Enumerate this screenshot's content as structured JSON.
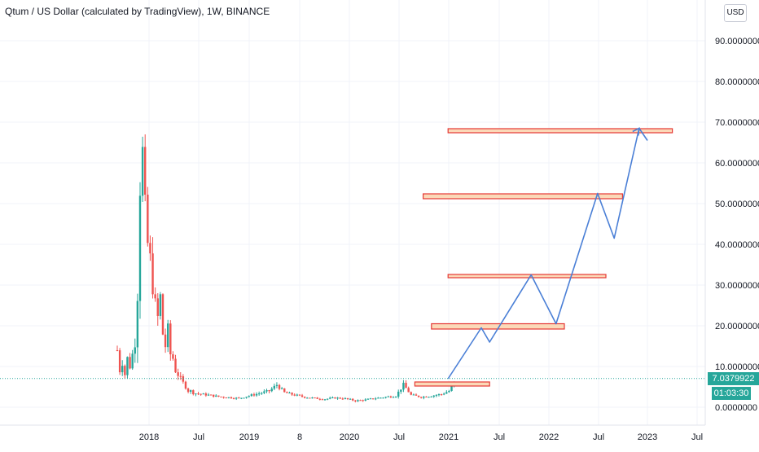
{
  "title": "Qtum / US Dollar (calculated by TradingView), 1W, BINANCE",
  "currency_button": "USD",
  "current_price": "7.0379922",
  "countdown": "01:03:30",
  "chart_data": {
    "type": "candlestick",
    "symbol": "QTUM/USD",
    "interval": "1W",
    "y_ticks": [
      "90.0000000",
      "80.0000000",
      "70.0000000",
      "60.0000000",
      "50.0000000",
      "40.0000000",
      "30.0000000",
      "20.0000000",
      "10.0000000",
      "0.0000000"
    ],
    "y_values": [
      90,
      80,
      70,
      60,
      50,
      40,
      30,
      20,
      10,
      0
    ],
    "x_ticks": [
      "2018",
      "Jul",
      "2019",
      "8",
      "2020",
      "Jul",
      "2021",
      "Jul",
      "2022",
      "Jul",
      "2023",
      "Jul"
    ],
    "ylim": [
      -3,
      93
    ],
    "price_path": [
      [
        0,
        14
      ],
      [
        1,
        9
      ],
      [
        2,
        11
      ],
      [
        3,
        8
      ],
      [
        4,
        12
      ],
      [
        5,
        10
      ],
      [
        6,
        13
      ],
      [
        7,
        16
      ],
      [
        8,
        28
      ],
      [
        9,
        55
      ],
      [
        10,
        62
      ],
      [
        11,
        48
      ],
      [
        12,
        40
      ],
      [
        13,
        36
      ],
      [
        14,
        30
      ],
      [
        15,
        25
      ],
      [
        16,
        22
      ],
      [
        17,
        27
      ],
      [
        18,
        18
      ],
      [
        19,
        15
      ],
      [
        20,
        19
      ],
      [
        21,
        13
      ],
      [
        22,
        12
      ],
      [
        23,
        9
      ],
      [
        24,
        8
      ],
      [
        25,
        7
      ],
      [
        26,
        6
      ],
      [
        27,
        5
      ],
      [
        28,
        4
      ],
      [
        29,
        4
      ],
      [
        30,
        3.5
      ],
      [
        33,
        3.2
      ],
      [
        36,
        3
      ],
      [
        40,
        2.6
      ],
      [
        44,
        2.4
      ],
      [
        48,
        2.2
      ],
      [
        52,
        2.8
      ],
      [
        56,
        3.4
      ],
      [
        60,
        4
      ],
      [
        63,
        5.5
      ],
      [
        66,
        3.6
      ],
      [
        70,
        3
      ],
      [
        74,
        2.5
      ],
      [
        78,
        2.2
      ],
      [
        82,
        2
      ],
      [
        86,
        2.3
      ],
      [
        90,
        2.1
      ],
      [
        94,
        1.6
      ],
      [
        98,
        1.8
      ],
      [
        102,
        2.2
      ],
      [
        106,
        2.5
      ],
      [
        110,
        2.8
      ],
      [
        113,
        5.5
      ],
      [
        116,
        3
      ],
      [
        120,
        2.5
      ],
      [
        124,
        2.8
      ],
      [
        128,
        3.2
      ],
      [
        131,
        4
      ],
      [
        134,
        7.0
      ]
    ],
    "projection": [
      {
        "date": "2021-01",
        "value": 7.0
      },
      {
        "date": "2021-05",
        "value": 19.5
      },
      {
        "date": "2021-06",
        "value": 16
      },
      {
        "date": "2021-11",
        "value": 32.5
      },
      {
        "date": "2022-02",
        "value": 20.5
      },
      {
        "date": "2022-07",
        "value": 52.5
      },
      {
        "date": "2022-09",
        "value": 41.5
      },
      {
        "date": "2022-12",
        "value": 68.5
      },
      {
        "date": "2023-01",
        "value": 65.5
      }
    ],
    "zones": [
      {
        "from": "2020-09",
        "to": "2021-06",
        "low": 5.2,
        "high": 6.2
      },
      {
        "from": "2020-11",
        "to": "2022-03",
        "low": 19.2,
        "high": 20.5
      },
      {
        "from": "2021-01",
        "to": "2022-08",
        "low": 31.8,
        "high": 32.6
      },
      {
        "from": "2020-10",
        "to": "2022-10",
        "low": 51.2,
        "high": 52.4
      },
      {
        "from": "2021-01",
        "to": "2023-04",
        "low": 67.4,
        "high": 68.4
      }
    ],
    "colors": {
      "up": "#26a69a",
      "down": "#ef5350",
      "projection": "#4a7fd6",
      "zone_fill": "#fbd9b8",
      "zone_border": "#e53935",
      "grid": "#f0f3fa"
    }
  }
}
